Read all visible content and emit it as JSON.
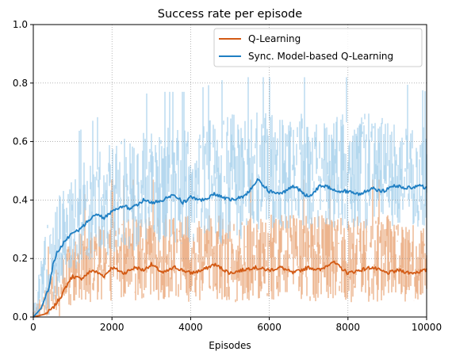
{
  "chart_data": {
    "type": "line",
    "title": "Success rate per episode",
    "xlabel": "Episodes",
    "ylabel": "",
    "xlim": [
      0,
      10000
    ],
    "ylim": [
      0.0,
      1.0
    ],
    "xticks": [
      0,
      2000,
      4000,
      6000,
      8000,
      10000
    ],
    "xtick_labels": [
      "0",
      "2000",
      "4000",
      "6000",
      "8000",
      "10000"
    ],
    "yticks": [
      0.0,
      0.2,
      0.4,
      0.6,
      0.8,
      1.0
    ],
    "ytick_labels": [
      "0.0",
      "0.2",
      "0.4",
      "0.6",
      "0.8",
      "1.0"
    ],
    "grid": true,
    "legend_position": "top-right",
    "series": [
      {
        "name": "Q-Learning",
        "color": "#d35a14",
        "raw_color": "#e9a87c",
        "moving_average": {
          "x": [
            0,
            300,
            500,
            700,
            900,
            1000,
            1200,
            1500,
            1800,
            2000,
            2300,
            2600,
            2800,
            3000,
            3300,
            3600,
            4000,
            4300,
            4600,
            5000,
            5300,
            5600,
            6000,
            6300,
            6600,
            7000,
            7300,
            7600,
            8000,
            8300,
            8600,
            9000,
            9300,
            9600,
            10000
          ],
          "y": [
            0.0,
            0.01,
            0.03,
            0.07,
            0.12,
            0.14,
            0.13,
            0.16,
            0.14,
            0.17,
            0.15,
            0.17,
            0.16,
            0.18,
            0.15,
            0.17,
            0.15,
            0.16,
            0.18,
            0.15,
            0.16,
            0.17,
            0.16,
            0.17,
            0.15,
            0.17,
            0.16,
            0.19,
            0.15,
            0.16,
            0.17,
            0.15,
            0.16,
            0.15,
            0.16
          ]
        },
        "raw_band": {
          "x": [
            0,
            300,
            500,
            700,
            900,
            1000,
            1500,
            2000,
            3000,
            4000,
            5000,
            6000,
            7000,
            8000,
            9000,
            10000
          ],
          "low": [
            0.0,
            0.0,
            0.0,
            0.0,
            0.0,
            0.05,
            0.05,
            0.05,
            0.05,
            0.05,
            0.05,
            0.05,
            0.05,
            0.05,
            0.05,
            0.05
          ],
          "high": [
            0.02,
            0.1,
            0.15,
            0.2,
            0.25,
            0.3,
            0.3,
            0.35,
            0.35,
            0.35,
            0.35,
            0.35,
            0.35,
            0.35,
            0.35,
            0.3
          ]
        }
      },
      {
        "name": "Sync. Model-based Q-Learning",
        "color": "#1f7fc3",
        "raw_color": "#a9d2ec",
        "moving_average": {
          "x": [
            0,
            200,
            400,
            500,
            600,
            800,
            1000,
            1200,
            1400,
            1600,
            1800,
            2000,
            2300,
            2500,
            2800,
            3000,
            3300,
            3600,
            3800,
            4000,
            4300,
            4600,
            4800,
            5000,
            5300,
            5500,
            5700,
            6000,
            6300,
            6600,
            6800,
            7000,
            7300,
            7600,
            7800,
            8000,
            8300,
            8600,
            8900,
            9200,
            9500,
            9800,
            10000
          ],
          "y": [
            0.0,
            0.03,
            0.1,
            0.18,
            0.22,
            0.26,
            0.29,
            0.3,
            0.33,
            0.35,
            0.34,
            0.36,
            0.38,
            0.37,
            0.4,
            0.39,
            0.4,
            0.42,
            0.39,
            0.41,
            0.4,
            0.42,
            0.41,
            0.4,
            0.41,
            0.43,
            0.47,
            0.43,
            0.42,
            0.45,
            0.43,
            0.41,
            0.45,
            0.44,
            0.43,
            0.43,
            0.42,
            0.44,
            0.43,
            0.45,
            0.44,
            0.45,
            0.44
          ]
        },
        "raw_band": {
          "x": [
            0,
            200,
            400,
            600,
            800,
            1000,
            1500,
            2000,
            3000,
            4000,
            5000,
            6000,
            7000,
            8000,
            9000,
            10000
          ],
          "low": [
            0.0,
            0.0,
            0.0,
            0.05,
            0.1,
            0.15,
            0.2,
            0.2,
            0.25,
            0.25,
            0.25,
            0.3,
            0.3,
            0.3,
            0.3,
            0.3
          ],
          "high": [
            0.05,
            0.2,
            0.35,
            0.4,
            0.45,
            0.5,
            0.55,
            0.6,
            0.65,
            0.65,
            0.7,
            0.7,
            0.7,
            0.7,
            0.7,
            0.65
          ]
        }
      }
    ]
  }
}
